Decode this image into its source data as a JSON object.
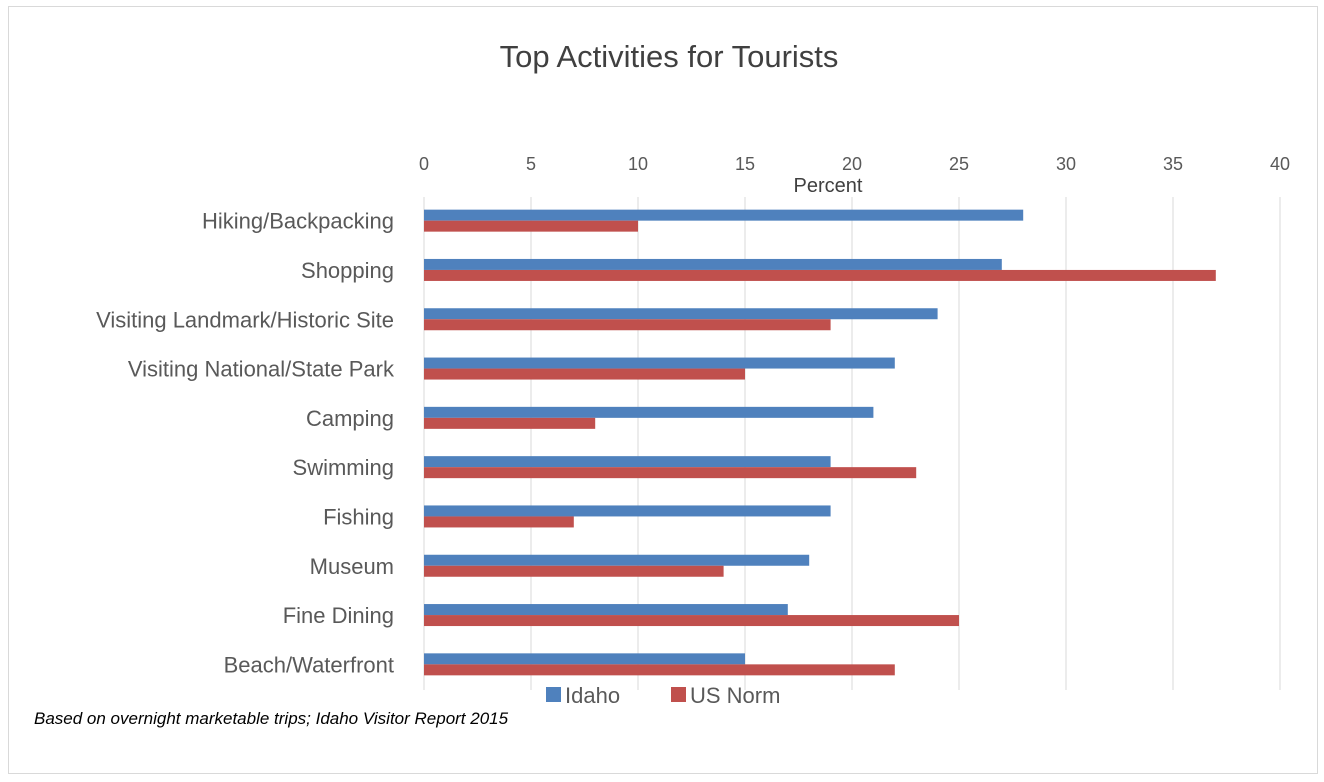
{
  "chart_data": {
    "type": "bar",
    "orientation": "horizontal",
    "title": "Top Activities for Tourists",
    "xlabel": "Percent",
    "ylabel": "",
    "xlim": [
      0,
      40
    ],
    "x_ticks": [
      "0",
      "5",
      "10",
      "15",
      "20",
      "25",
      "30",
      "35",
      "40"
    ],
    "x_axis_position": "top",
    "grid": true,
    "legend_position": "bottom",
    "categories": [
      "Hiking/Backpacking",
      "Shopping",
      "Visiting Landmark/Historic Site",
      "Visiting National/State Park",
      "Camping",
      "Swimming",
      "Fishing",
      "Museum",
      "Fine Dining",
      "Beach/Waterfront"
    ],
    "series": [
      {
        "name": "Idaho",
        "color": "#4f81bd",
        "values": [
          28,
          27,
          24,
          22,
          21,
          19,
          19,
          18,
          17,
          15
        ]
      },
      {
        "name": "US Norm",
        "color": "#c0504d",
        "values": [
          10,
          37,
          19,
          15,
          8,
          23,
          7,
          14,
          25,
          22
        ]
      }
    ],
    "footnote": "Based on overnight marketable trips; Idaho Visitor Report 2015"
  }
}
